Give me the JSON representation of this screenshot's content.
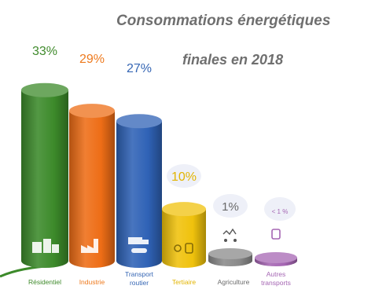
{
  "chart_data": {
    "type": "bar",
    "title": [
      "Consommations énergétiques",
      "finales en 2018"
    ],
    "categories": [
      "Résidentiel",
      "Industrie",
      "Transport routier",
      "Tertiaire",
      "Agriculture",
      "Autres transports"
    ],
    "values": [
      33,
      29,
      27,
      10,
      1,
      0.5
    ],
    "data_labels": [
      "33%",
      "29%",
      "27%",
      "10%",
      "1%",
      "< 1 %"
    ],
    "colors": [
      "#3c8a2a",
      "#ee6d16",
      "#2f62b6",
      "#f0c20c",
      "#8a8a8a",
      "#a566b3"
    ],
    "label_colors": [
      "#3f8a2b",
      "#ee7a1e",
      "#3566b4",
      "#e2b400",
      "#6a6a6a",
      "#a566b3"
    ],
    "icons": [
      "houses-icon",
      "factory-icon",
      "truck-car-icon",
      "office-icon",
      "tractor-icon",
      "train-icon"
    ],
    "ylim": [
      0,
      36
    ],
    "xlabel": "",
    "ylabel": "",
    "grid": false,
    "legend": "none"
  }
}
